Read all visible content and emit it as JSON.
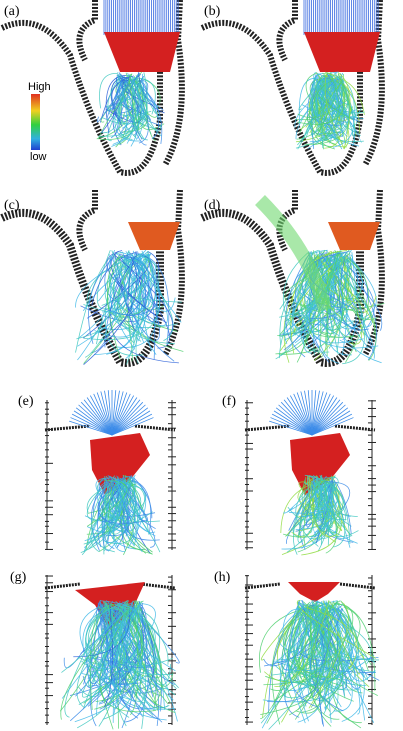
{
  "panels": [
    {
      "label": "(a)"
    },
    {
      "label": "(b)"
    },
    {
      "label": "(c)"
    },
    {
      "label": "(d)"
    },
    {
      "label": "(e)"
    },
    {
      "label": "(f)"
    },
    {
      "label": "(g)"
    },
    {
      "label": "(h)"
    }
  ],
  "colorbar": {
    "high": "High",
    "low": "low"
  }
}
